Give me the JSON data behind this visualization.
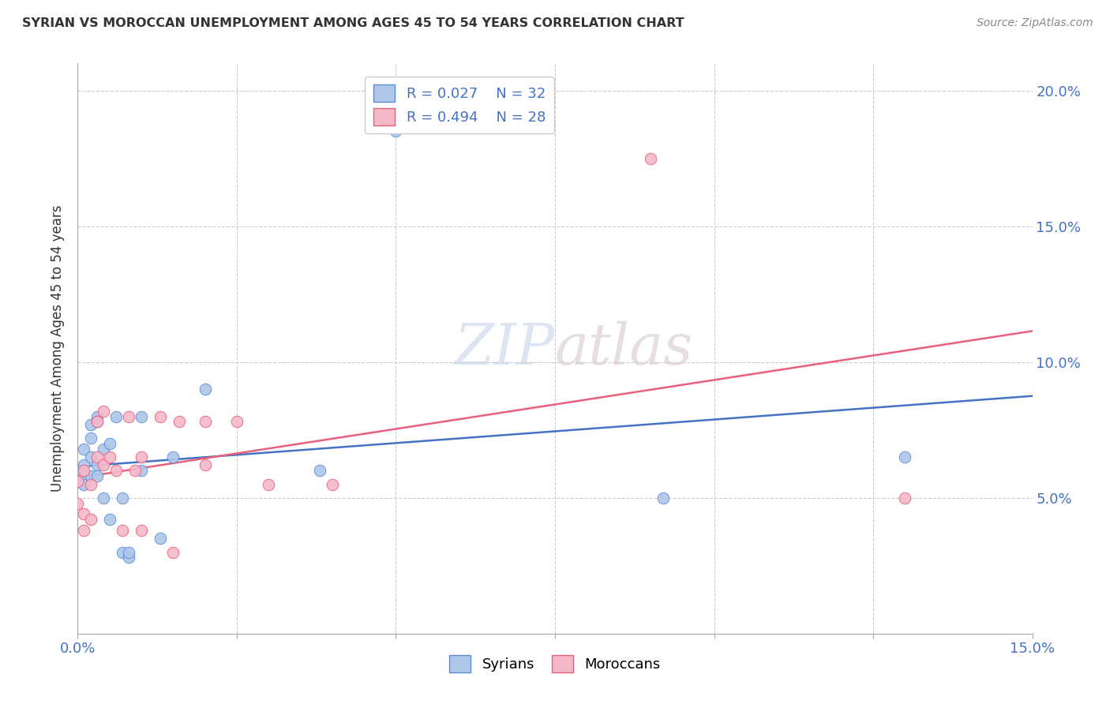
{
  "title": "SYRIAN VS MOROCCAN UNEMPLOYMENT AMONG AGES 45 TO 54 YEARS CORRELATION CHART",
  "source": "Source: ZipAtlas.com",
  "ylabel": "Unemployment Among Ages 45 to 54 years",
  "xlim": [
    0.0,
    0.15
  ],
  "ylim": [
    0.0,
    0.21
  ],
  "xtick_labels": [
    "0.0%",
    "",
    "",
    "",
    "",
    "",
    "15.0%"
  ],
  "ytick_right_labels": [
    "",
    "5.0%",
    "10.0%",
    "15.0%",
    "20.0%"
  ],
  "syrian_R": 0.027,
  "syrian_N": 32,
  "moroccan_R": 0.494,
  "moroccan_N": 28,
  "syrian_color": "#aec6e8",
  "moroccan_color": "#f5b8c8",
  "syrian_edge_color": "#5b8dd9",
  "moroccan_edge_color": "#e8607a",
  "syrian_line_color": "#4472c4",
  "moroccan_line_color": "#e8607a",
  "watermark_color": "#cdd9e8",
  "background_color": "#ffffff",
  "grid_color": "#cccccc",
  "title_color": "#333333",
  "axis_label_color": "#333333",
  "tick_color": "#4472c4",
  "syrian_x": [
    0.0,
    0.0,
    0.001,
    0.001,
    0.001,
    0.001,
    0.002,
    0.002,
    0.002,
    0.002,
    0.003,
    0.003,
    0.003,
    0.003,
    0.004,
    0.004,
    0.005,
    0.005,
    0.006,
    0.007,
    0.007,
    0.008,
    0.008,
    0.01,
    0.01,
    0.013,
    0.015,
    0.02,
    0.038,
    0.05,
    0.092,
    0.13
  ],
  "syrian_y": [
    0.06,
    0.056,
    0.062,
    0.058,
    0.068,
    0.055,
    0.077,
    0.065,
    0.058,
    0.072,
    0.08,
    0.062,
    0.058,
    0.078,
    0.05,
    0.068,
    0.07,
    0.042,
    0.08,
    0.05,
    0.03,
    0.028,
    0.03,
    0.06,
    0.08,
    0.035,
    0.065,
    0.09,
    0.06,
    0.185,
    0.05,
    0.065
  ],
  "moroccan_x": [
    0.0,
    0.0,
    0.001,
    0.001,
    0.001,
    0.002,
    0.002,
    0.003,
    0.003,
    0.004,
    0.004,
    0.005,
    0.006,
    0.007,
    0.008,
    0.009,
    0.01,
    0.01,
    0.013,
    0.015,
    0.016,
    0.02,
    0.02,
    0.025,
    0.03,
    0.04,
    0.09,
    0.13
  ],
  "moroccan_y": [
    0.056,
    0.048,
    0.06,
    0.044,
    0.038,
    0.055,
    0.042,
    0.078,
    0.065,
    0.082,
    0.062,
    0.065,
    0.06,
    0.038,
    0.08,
    0.06,
    0.065,
    0.038,
    0.08,
    0.03,
    0.078,
    0.078,
    0.062,
    0.078,
    0.055,
    0.055,
    0.175,
    0.05
  ],
  "marker_size": 110,
  "line_width": 1.8
}
